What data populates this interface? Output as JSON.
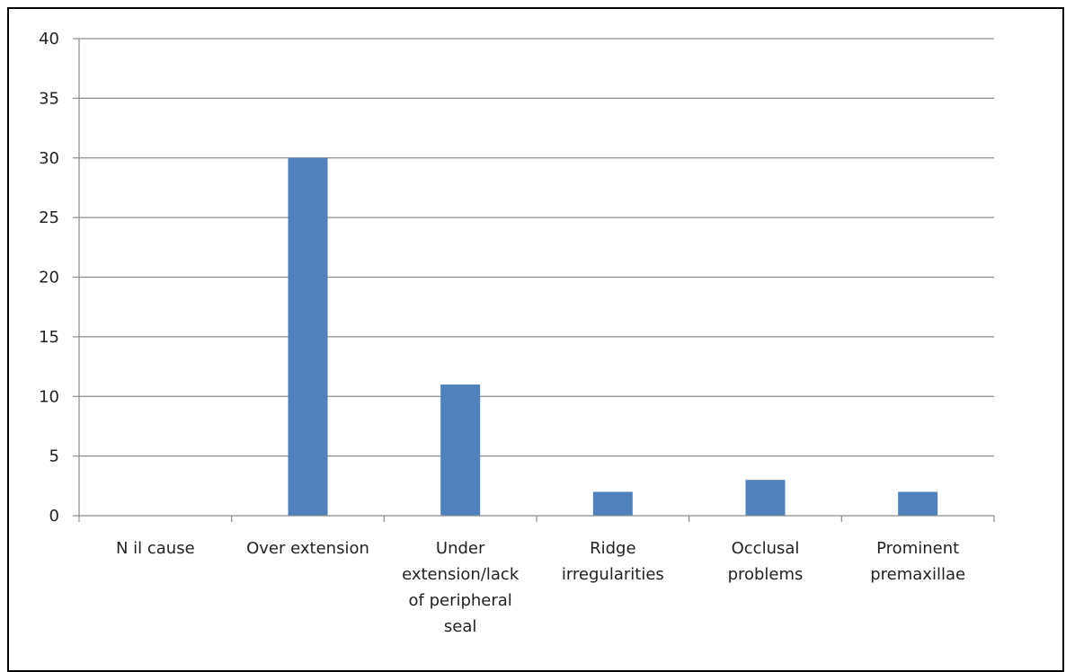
{
  "chart_data": {
    "type": "bar",
    "title": "",
    "xlabel": "",
    "ylabel": "",
    "categories": [
      "Nil cause",
      "Over extension",
      "Under extension/lack of peripheral seal",
      "Ridge irregularities",
      "Occlusal problems",
      "Prominent premaxillae"
    ],
    "category_lines": [
      [
        "N il cause"
      ],
      [
        "Over extension"
      ],
      [
        "Under",
        "extension/lack",
        "of peripheral",
        "seal"
      ],
      [
        "Ridge",
        "irregularities"
      ],
      [
        "Occlusal",
        "problems"
      ],
      [
        "Prominent",
        "premaxillae"
      ]
    ],
    "values": [
      0,
      30,
      11,
      2,
      3,
      2
    ],
    "ylim": [
      0,
      40
    ],
    "yticks": [
      0,
      5,
      10,
      15,
      20,
      25,
      30,
      35,
      40
    ],
    "grid": true,
    "legend": "none",
    "bar_color": "#4f81bd",
    "grid_color": "#8c8c8c",
    "axis_color": "#8c8c8c"
  }
}
